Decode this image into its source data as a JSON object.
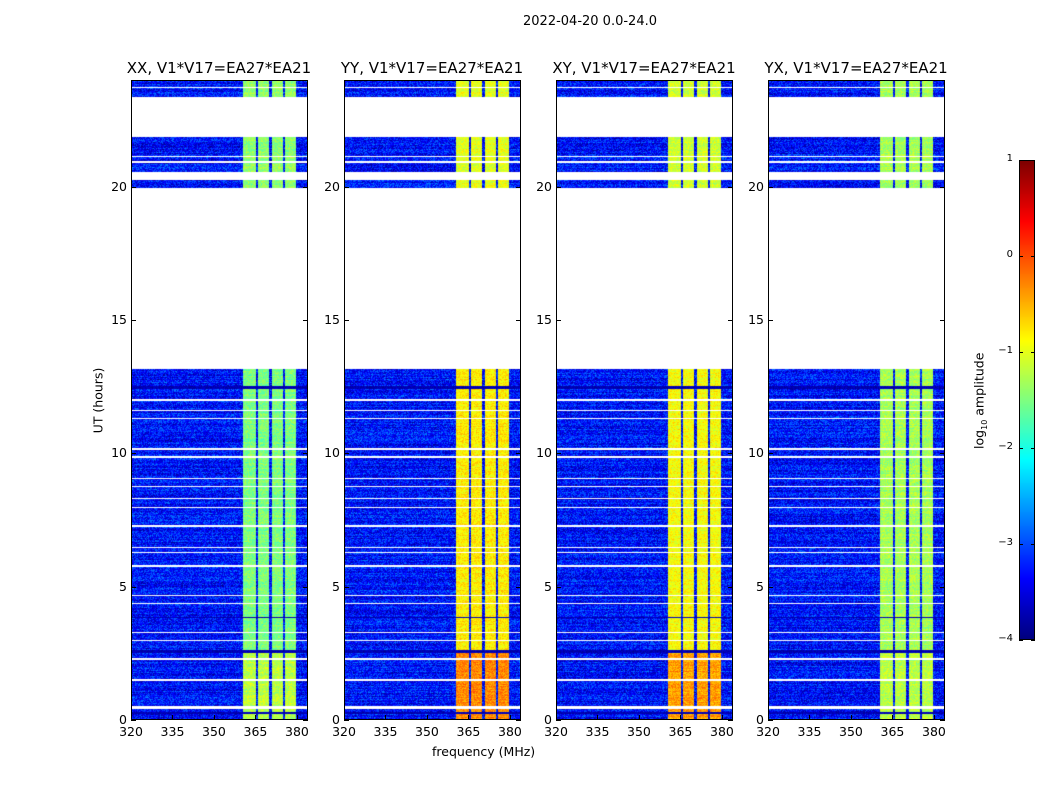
{
  "chart_data": {
    "type": "heatmap",
    "title": "2022-04-20 0.0-24.0",
    "xlabel": "frequency (MHz)",
    "ylabel": "UT (hours)",
    "xlim": [
      320,
      384
    ],
    "ylim": [
      0,
      24
    ],
    "xticks": [
      "320",
      "335",
      "350",
      "365",
      "380"
    ],
    "yticks": [
      "0",
      "5",
      "10",
      "15",
      "20"
    ],
    "colorbar": {
      "label": "log10 amplitude",
      "label_main": "log",
      "label_sub": "10",
      "label_rest": " amplitude",
      "range": [
        -4,
        1
      ],
      "ticks": [
        "1",
        "0",
        "−1",
        "−2",
        "−3",
        "−4"
      ],
      "colormap": "jet"
    },
    "flagged_hours": [
      [
        0.4,
        0.5
      ],
      [
        13.2,
        20.0
      ],
      [
        20.3,
        20.6
      ],
      [
        21.9,
        23.4
      ],
      [
        1.45,
        1.52
      ],
      [
        2.25,
        2.3
      ],
      [
        2.95,
        3.0
      ],
      [
        3.25,
        3.3
      ],
      [
        4.35,
        4.4
      ],
      [
        4.65,
        4.7
      ],
      [
        5.75,
        5.8
      ],
      [
        6.25,
        6.3
      ],
      [
        6.45,
        6.5
      ],
      [
        7.25,
        7.3
      ],
      [
        7.95,
        8.0
      ],
      [
        8.3,
        8.35
      ],
      [
        8.75,
        8.8
      ],
      [
        9.05,
        9.1
      ],
      [
        9.85,
        9.9
      ],
      [
        10.15,
        10.2
      ],
      [
        11.3,
        11.35
      ],
      [
        11.6,
        11.65
      ],
      [
        12.0,
        12.05
      ],
      [
        20.95,
        21.0
      ],
      [
        21.15,
        21.2
      ],
      [
        23.75,
        23.8
      ]
    ],
    "rfi_bands_mhz": [
      [
        360.4,
        365.1
      ],
      [
        365.8,
        370.1
      ],
      [
        370.9,
        374.9
      ],
      [
        375.6,
        379.9
      ]
    ],
    "background_level": -3.3,
    "panels": [
      {
        "name": "XX, V1*V17=EA27*EA21",
        "band_levels": {
          "early": -1.2,
          "mid": -1.5,
          "late": -1.4
        }
      },
      {
        "name": "YY, V1*V17=EA27*EA21",
        "band_levels": {
          "early": -0.3,
          "mid": -0.8,
          "late": -1.0
        }
      },
      {
        "name": "XY, V1*V17=EA27*EA21",
        "band_levels": {
          "early": -0.4,
          "mid": -0.9,
          "late": -1.1
        }
      },
      {
        "name": "YX, V1*V17=EA27*EA21",
        "band_levels": {
          "early": -1.2,
          "mid": -1.3,
          "late": -1.3
        }
      }
    ]
  }
}
